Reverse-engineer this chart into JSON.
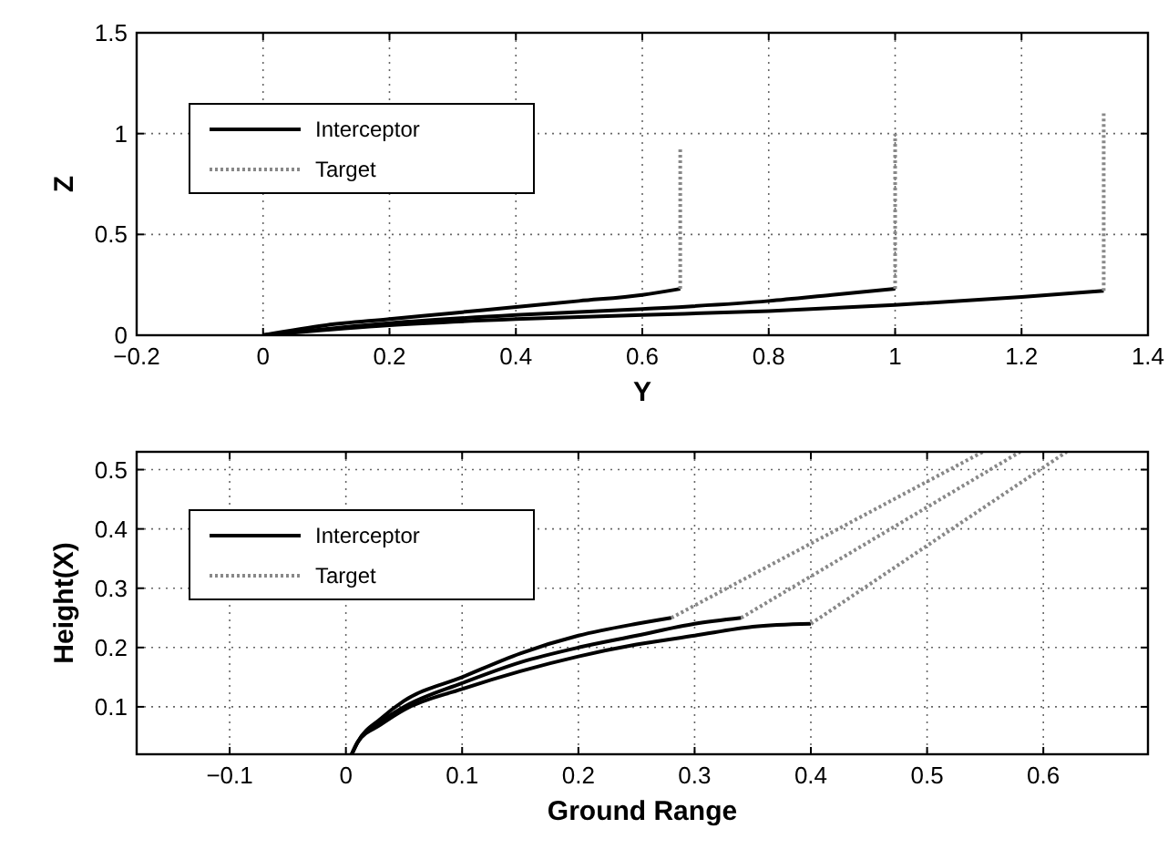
{
  "chart_data": [
    {
      "type": "line",
      "xlabel": "Y",
      "ylabel": "Z",
      "xlim": [
        -0.2,
        1.4
      ],
      "ylim": [
        0,
        1.5
      ],
      "xticks": [
        {
          "value": -0.2,
          "label": "−0.2"
        },
        0,
        0.2,
        0.4,
        0.6,
        0.8,
        1,
        1.2,
        1.4
      ],
      "yticks": [
        0,
        0.5,
        1,
        1.5
      ],
      "grid": true,
      "legend": "top left",
      "series": [
        {
          "name": "Interceptor",
          "color": "#000000",
          "line_style": "solid",
          "x": [
            0,
            0.1,
            0.2,
            0.3,
            0.4,
            0.5,
            0.6,
            0.66
          ],
          "values": [
            0,
            0.05,
            0.08,
            0.11,
            0.14,
            0.17,
            0.2,
            0.23
          ]
        },
        {
          "color": "#000000",
          "line_style": "solid",
          "x": [
            0,
            0.2,
            0.4,
            0.6,
            0.8,
            0.9,
            1.0
          ],
          "values": [
            0,
            0.06,
            0.1,
            0.13,
            0.17,
            0.2,
            0.23
          ]
        },
        {
          "color": "#000000",
          "line_style": "solid",
          "x": [
            0,
            0.2,
            0.4,
            0.6,
            0.8,
            1.0,
            1.2,
            1.33
          ],
          "values": [
            0,
            0.05,
            0.08,
            0.1,
            0.12,
            0.15,
            0.19,
            0.22
          ]
        },
        {
          "name": "Target",
          "color": "#888888",
          "line_style": "dotted",
          "x": [
            0.66,
            0.66
          ],
          "values": [
            0.23,
            0.93
          ]
        },
        {
          "color": "#888888",
          "line_style": "dotted",
          "x": [
            1.0,
            1.0
          ],
          "values": [
            0.23,
            1.0
          ]
        },
        {
          "color": "#888888",
          "line_style": "dotted",
          "x": [
            1.33,
            1.33
          ],
          "values": [
            0.22,
            1.1
          ]
        }
      ]
    },
    {
      "type": "line",
      "xlabel": "Ground Range",
      "ylabel": "Height(X)",
      "xlim": [
        -0.18,
        0.69
      ],
      "ylim": [
        0.02,
        0.53
      ],
      "xticks": [
        {
          "value": -0.1,
          "label": "−0.1"
        },
        0,
        0.1,
        0.2,
        0.3,
        0.4,
        0.5,
        0.6
      ],
      "yticks": [
        0.1,
        0.2,
        0.3,
        0.4,
        0.5
      ],
      "grid": true,
      "legend": "top left",
      "series": [
        {
          "name": "Interceptor",
          "color": "#000000",
          "line_style": "solid",
          "x": [
            0.005,
            0.01,
            0.03,
            0.05,
            0.1,
            0.15,
            0.2,
            0.25,
            0.28
          ],
          "values": [
            0.02,
            0.04,
            0.08,
            0.11,
            0.15,
            0.19,
            0.22,
            0.24,
            0.25
          ]
        },
        {
          "color": "#000000",
          "line_style": "solid",
          "x": [
            0.005,
            0.01,
            0.03,
            0.05,
            0.1,
            0.15,
            0.2,
            0.25,
            0.3,
            0.34
          ],
          "values": [
            0.02,
            0.04,
            0.075,
            0.1,
            0.14,
            0.175,
            0.2,
            0.22,
            0.24,
            0.25
          ]
        },
        {
          "color": "#000000",
          "line_style": "solid",
          "x": [
            0.005,
            0.01,
            0.03,
            0.05,
            0.1,
            0.15,
            0.2,
            0.25,
            0.3,
            0.35,
            0.4
          ],
          "values": [
            0.02,
            0.04,
            0.07,
            0.095,
            0.13,
            0.16,
            0.185,
            0.205,
            0.22,
            0.235,
            0.24
          ]
        },
        {
          "name": "Target",
          "color": "#888888",
          "line_style": "dotted",
          "x": [
            0.28,
            0.548
          ],
          "values": [
            0.25,
            0.53
          ]
        },
        {
          "color": "#888888",
          "line_style": "dotted",
          "x": [
            0.34,
            0.58
          ],
          "values": [
            0.25,
            0.53
          ]
        },
        {
          "color": "#888888",
          "line_style": "dotted",
          "x": [
            0.4,
            0.62
          ],
          "values": [
            0.24,
            0.53
          ]
        }
      ]
    }
  ]
}
